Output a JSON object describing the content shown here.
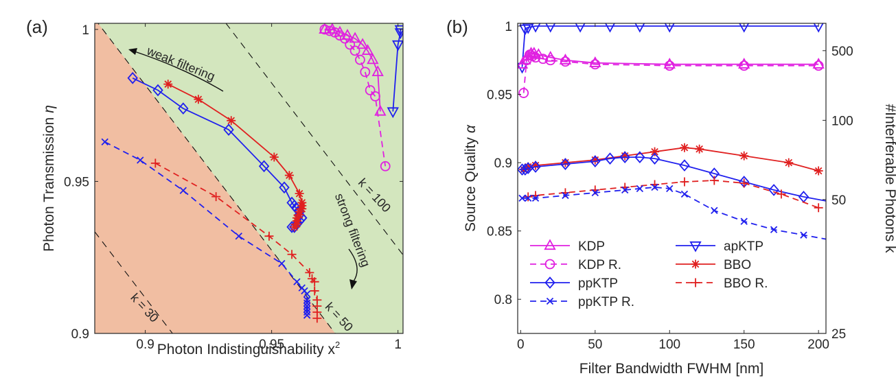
{
  "chart_data": [
    {
      "panel_label": "(a)",
      "type": "line",
      "xlabel": "Photon Indistinguishability x",
      "xlabel_sup": "2",
      "ylabel": "Photon Transmission",
      "ylabel_sym": "η",
      "xlim": [
        0.88,
        1.002
      ],
      "ylim": [
        0.9,
        1.002
      ],
      "xticks": [
        {
          "v": 0.9,
          "label": "0.9"
        },
        {
          "v": 0.95,
          "label": "0.95"
        },
        {
          "v": 1.0,
          "label": "1"
        }
      ],
      "yticks": [
        {
          "v": 0.9,
          "label": "0.9"
        },
        {
          "v": 0.95,
          "label": "0.95"
        },
        {
          "v": 1.0,
          "label": "1"
        }
      ],
      "regions": {
        "lower_color": "#f1bea2",
        "upper_color": "#d3e6be"
      },
      "k_lines": [
        {
          "label": "k = 30",
          "slope": -1.087,
          "icpt": 1.89,
          "x_from": 0.88,
          "x_to": 0.92,
          "lx": 0.8985,
          "ly": 0.9075,
          "rot": 47
        },
        {
          "label": "k = 50",
          "slope": -1.087,
          "icpt": 1.96,
          "x_from": 0.88,
          "x_to": 0.99,
          "lx": 0.9755,
          "ly": 0.9045,
          "rot": 47
        },
        {
          "label": "k = 100",
          "slope": -1.087,
          "icpt": 2.015,
          "x_from": 0.92,
          "x_to": 1.002,
          "lx": 0.9895,
          "ly": 0.9445,
          "rot": 47
        }
      ],
      "annotations": [
        {
          "text": "weak filtering",
          "x": 0.9135,
          "y": 0.9875,
          "rot": 22
        },
        {
          "text": "strong filtering",
          "x": 0.9805,
          "y": 0.9335,
          "rot": 69
        }
      ],
      "series": [
        {
          "key": "KDP",
          "color": "#e020e0",
          "dash": "",
          "marker": "tri_up",
          "x": [
            0.971,
            0.974,
            0.977,
            0.98,
            0.983,
            0.986,
            0.988,
            0.99,
            0.992,
            0.993
          ],
          "y": [
            1.0,
            1.0,
            0.999,
            0.998,
            0.997,
            0.995,
            0.993,
            0.99,
            0.986,
            0.973
          ]
        },
        {
          "key": "KDPR",
          "color": "#e020e0",
          "dash": "9,6",
          "marker": "circle",
          "x": [
            0.971,
            0.973,
            0.975,
            0.977,
            0.979,
            0.981,
            0.983,
            0.985,
            0.987,
            0.989,
            0.991,
            0.995
          ],
          "y": [
            1.0,
            0.9995,
            0.999,
            0.998,
            0.997,
            0.995,
            0.993,
            0.99,
            0.986,
            0.98,
            0.978,
            0.955
          ]
        },
        {
          "key": "apKTP",
          "color": "#2020ee",
          "dash": "",
          "marker": "tri_down",
          "x": [
            0.998,
            1.0,
            1.001,
            1.001
          ],
          "y": [
            0.973,
            0.995,
            0.999,
            1.0
          ]
        },
        {
          "key": "ppKTP",
          "color": "#2020ee",
          "dash": "",
          "marker": "diamond",
          "x": [
            0.895,
            0.905,
            0.915,
            0.933,
            0.947,
            0.955,
            0.958,
            0.959,
            0.96,
            0.961,
            0.961,
            0.962,
            0.962,
            0.961,
            0.96,
            0.959,
            0.958
          ],
          "y": [
            0.984,
            0.98,
            0.974,
            0.967,
            0.955,
            0.948,
            0.943,
            0.942,
            0.941,
            0.94,
            0.939,
            0.938,
            0.938,
            0.937,
            0.936,
            0.935,
            0.935
          ]
        },
        {
          "key": "BBO",
          "color": "#e02020",
          "dash": "",
          "marker": "star",
          "x": [
            0.909,
            0.921,
            0.934,
            0.951,
            0.957,
            0.961,
            0.962,
            0.962,
            0.962,
            0.961,
            0.961,
            0.96,
            0.96,
            0.96,
            0.959
          ],
          "y": [
            0.982,
            0.977,
            0.97,
            0.958,
            0.952,
            0.946,
            0.943,
            0.942,
            0.941,
            0.94,
            0.939,
            0.938,
            0.937,
            0.936,
            0.935
          ]
        },
        {
          "key": "ppKTPR",
          "color": "#2020ee",
          "dash": "9,6",
          "marker": "x",
          "x": [
            0.884,
            0.898,
            0.915,
            0.937,
            0.954,
            0.96,
            0.962,
            0.963,
            0.964,
            0.964,
            0.964,
            0.964,
            0.964,
            0.964,
            0.964,
            0.964
          ],
          "y": [
            0.963,
            0.957,
            0.947,
            0.932,
            0.923,
            0.917,
            0.915,
            0.914,
            0.913,
            0.911,
            0.91,
            0.909,
            0.908,
            0.907,
            0.906,
            0.906
          ]
        },
        {
          "key": "BBOR",
          "color": "#e02020",
          "dash": "9,6",
          "marker": "plus",
          "x": [
            0.904,
            0.928,
            0.949,
            0.958,
            0.965,
            0.966,
            0.967,
            0.967,
            0.968,
            0.968,
            0.968,
            0.968
          ],
          "y": [
            0.956,
            0.945,
            0.932,
            0.926,
            0.92,
            0.918,
            0.917,
            0.914,
            0.911,
            0.909,
            0.907,
            0.905
          ]
        }
      ]
    },
    {
      "panel_label": "(b)",
      "type": "line",
      "xlabel": "Filter Bandwidth FWHM [nm]",
      "ylabel": "Source Quality",
      "ylabel_sym": "α",
      "y2label": "#Interferable Photons k",
      "xlim": [
        -2,
        205
      ],
      "ylim": [
        0.775,
        1.002
      ],
      "xticks": [
        {
          "v": 0,
          "label": "0"
        },
        {
          "v": 50,
          "label": "50"
        },
        {
          "v": 100,
          "label": "100"
        },
        {
          "v": 150,
          "label": "150"
        },
        {
          "v": 200,
          "label": "200"
        }
      ],
      "yticks": [
        {
          "v": 0.8,
          "label": "0.8"
        },
        {
          "v": 0.85,
          "label": "0.85"
        },
        {
          "v": 0.9,
          "label": "0.9"
        },
        {
          "v": 0.95,
          "label": "0.95"
        },
        {
          "v": 1.0,
          "label": "1"
        }
      ],
      "y2ticks": [
        {
          "v": 25,
          "label": "25",
          "at": 0.775
        },
        {
          "v": 50,
          "label": "50",
          "at": 0.873
        },
        {
          "v": 100,
          "label": "100",
          "at": 0.931
        },
        {
          "v": 500,
          "label": "500",
          "at": 0.982
        }
      ],
      "legend_position": "bottom-left",
      "legend": [
        {
          "key": "KDP",
          "label": "KDP",
          "col": 0,
          "row": 0
        },
        {
          "key": "KDPR",
          "label": "KDP  R.",
          "col": 0,
          "row": 1
        },
        {
          "key": "ppKTP",
          "label": "ppKTP",
          "col": 0,
          "row": 2
        },
        {
          "key": "ppKTPR",
          "label": "ppKTP  R.",
          "col": 0,
          "row": 3
        },
        {
          "key": "apKTP",
          "label": "apKTP",
          "col": 1,
          "row": 0
        },
        {
          "key": "BBO",
          "label": "BBO",
          "col": 1,
          "row": 1
        },
        {
          "key": "BBOR",
          "label": "BBO  R.",
          "col": 1,
          "row": 2
        }
      ],
      "series": [
        {
          "key": "apKTP",
          "color": "#2020ee",
          "dash": "",
          "marker": "tri_down",
          "x": [
            1,
            3,
            5,
            10,
            20,
            40,
            60,
            80,
            100,
            150,
            200
          ],
          "y": [
            0.97,
            0.998,
            0.999,
            1.0,
            1.0,
            1.0,
            1.0,
            1.0,
            1.0,
            1.0,
            1.0
          ]
        },
        {
          "key": "KDP",
          "color": "#e020e0",
          "dash": "",
          "marker": "tri_up",
          "x": [
            1,
            3,
            5,
            7,
            9,
            12,
            20,
            30,
            50,
            100,
            150,
            200
          ],
          "y": [
            0.972,
            0.975,
            0.978,
            0.98,
            0.98,
            0.979,
            0.977,
            0.975,
            0.973,
            0.972,
            0.972,
            0.972
          ],
          "mx": [
            1,
            3,
            5,
            7,
            9,
            12,
            20,
            30,
            50,
            100,
            150,
            200
          ]
        },
        {
          "key": "KDPR",
          "color": "#e020e0",
          "dash": "9,6",
          "marker": "circle",
          "x": [
            2,
            4,
            6,
            8,
            10,
            15,
            20,
            30,
            50,
            100,
            150,
            200
          ],
          "y": [
            0.951,
            0.975,
            0.979,
            0.978,
            0.977,
            0.976,
            0.975,
            0.974,
            0.972,
            0.971,
            0.971,
            0.971
          ]
        },
        {
          "key": "BBO",
          "color": "#e02020",
          "dash": "",
          "marker": "star",
          "x": [
            2,
            5,
            10,
            30,
            50,
            70,
            90,
            110,
            120,
            150,
            180,
            200
          ],
          "y": [
            0.895,
            0.897,
            0.898,
            0.9,
            0.902,
            0.905,
            0.908,
            0.911,
            0.91,
            0.905,
            0.9,
            0.894
          ]
        },
        {
          "key": "ppKTP",
          "color": "#2020ee",
          "dash": "",
          "marker": "diamond",
          "x": [
            1,
            3,
            5,
            10,
            30,
            50,
            60,
            70,
            80,
            90,
            110,
            130,
            150,
            170,
            190,
            205
          ],
          "y": [
            0.895,
            0.895,
            0.896,
            0.897,
            0.899,
            0.901,
            0.903,
            0.904,
            0.904,
            0.903,
            0.898,
            0.892,
            0.886,
            0.88,
            0.875,
            0.872
          ],
          "mx": [
            1,
            3,
            5,
            10,
            30,
            50,
            60,
            70,
            80,
            90,
            110,
            130,
            150,
            170,
            190
          ]
        },
        {
          "key": "BBOR",
          "color": "#e02020",
          "dash": "9,6",
          "marker": "plus",
          "x": [
            5,
            10,
            30,
            50,
            70,
            90,
            110,
            130,
            150,
            175,
            200
          ],
          "y": [
            0.875,
            0.876,
            0.878,
            0.88,
            0.882,
            0.884,
            0.886,
            0.887,
            0.885,
            0.877,
            0.867
          ]
        },
        {
          "key": "ppKTPR",
          "color": "#2020ee",
          "dash": "9,6",
          "marker": "x",
          "x": [
            1,
            5,
            10,
            30,
            50,
            70,
            80,
            90,
            100,
            110,
            130,
            150,
            170,
            190,
            205
          ],
          "y": [
            0.874,
            0.874,
            0.874,
            0.876,
            0.878,
            0.88,
            0.881,
            0.882,
            0.881,
            0.877,
            0.865,
            0.857,
            0.851,
            0.847,
            0.844
          ],
          "mx": [
            1,
            5,
            10,
            30,
            50,
            70,
            80,
            90,
            100,
            110,
            130,
            150,
            170,
            190
          ]
        }
      ]
    }
  ]
}
